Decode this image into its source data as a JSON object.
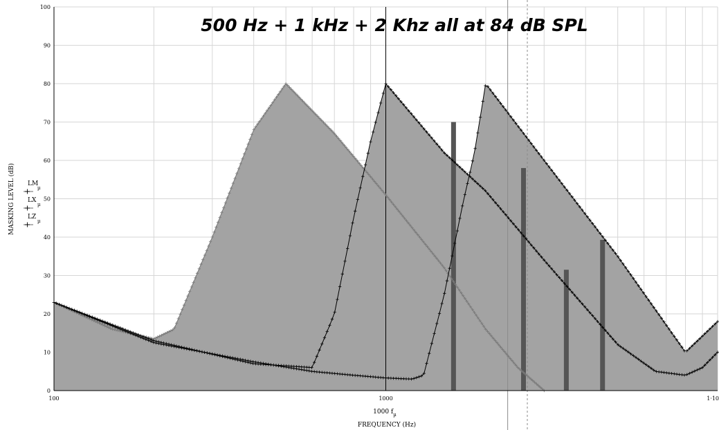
{
  "chart_data": {
    "type": "line",
    "title": "500 Hz + 1 kHz + 2 Khz all at 84 dB SPL",
    "xlabel": "FREQUENCY  (Hz)",
    "xlabel_top": "1000 f",
    "xlabel_top_sub": "µ",
    "ylabel": "MASKING LEVEL (dB)",
    "xscale": "log",
    "xlim": [
      100,
      10000
    ],
    "ylim": [
      0,
      100
    ],
    "x_tick_labels": [
      {
        "x": 100,
        "label": "100"
      },
      {
        "x": 1000,
        "label": "1000"
      },
      {
        "x": 10000,
        "label": "1·10"
      }
    ],
    "y_ticks": [
      0,
      10,
      20,
      30,
      40,
      50,
      60,
      70,
      80,
      90,
      100
    ],
    "grid": true,
    "legend": {
      "placement": "left",
      "entries": [
        {
          "name": "LM",
          "sub": "µ"
        },
        {
          "name": "LX",
          "sub": "µ"
        },
        {
          "name": "LZ",
          "sub": "µ"
        }
      ]
    },
    "series": [
      {
        "name": "LM",
        "points": [
          [
            100,
            23
          ],
          [
            150,
            16
          ],
          [
            200,
            13.5
          ],
          [
            230,
            16
          ],
          [
            300,
            40
          ],
          [
            400,
            68
          ],
          [
            500,
            80
          ],
          [
            700,
            67
          ],
          [
            1000,
            51
          ],
          [
            1500,
            32
          ],
          [
            2000,
            16
          ],
          [
            2500,
            6
          ],
          [
            3000,
            0
          ]
        ]
      },
      {
        "name": "LX",
        "points": [
          [
            100,
            23
          ],
          [
            200,
            12.5
          ],
          [
            400,
            7.5
          ],
          [
            600,
            5
          ],
          [
            800,
            4
          ],
          [
            1000,
            3.3
          ],
          [
            1200,
            3
          ],
          [
            1300,
            4
          ],
          [
            1500,
            25
          ],
          [
            1700,
            48
          ],
          [
            1850,
            62
          ],
          [
            2000,
            80
          ],
          [
            3000,
            60
          ],
          [
            5000,
            35
          ],
          [
            8000,
            10
          ],
          [
            10000,
            18
          ]
        ]
      },
      {
        "name": "LZ",
        "points": [
          [
            100,
            23
          ],
          [
            200,
            13
          ],
          [
            400,
            7
          ],
          [
            600,
            6
          ],
          [
            700,
            20
          ],
          [
            800,
            45
          ],
          [
            900,
            65
          ],
          [
            1000,
            80
          ],
          [
            1500,
            62
          ],
          [
            2000,
            52
          ],
          [
            3000,
            34
          ],
          [
            5000,
            12
          ],
          [
            6500,
            5
          ],
          [
            8000,
            4
          ],
          [
            9000,
            6
          ],
          [
            10000,
            10
          ]
        ]
      }
    ],
    "bars": [
      {
        "x": 1600,
        "value": 70
      },
      {
        "x": 2600,
        "value": 58
      },
      {
        "x": 3500,
        "value": 31.5
      },
      {
        "x": 4500,
        "value": 39.3
      }
    ],
    "vlines": [
      {
        "x": 1000,
        "style": "solid-black"
      },
      {
        "x": 2330,
        "style": "solid-gray"
      },
      {
        "x": 2670,
        "style": "dashed-gray"
      }
    ],
    "colors": {
      "fill": "#a3a3a3",
      "bars": "#555555",
      "line": "#000000",
      "grid": "#d6d6d6"
    }
  }
}
